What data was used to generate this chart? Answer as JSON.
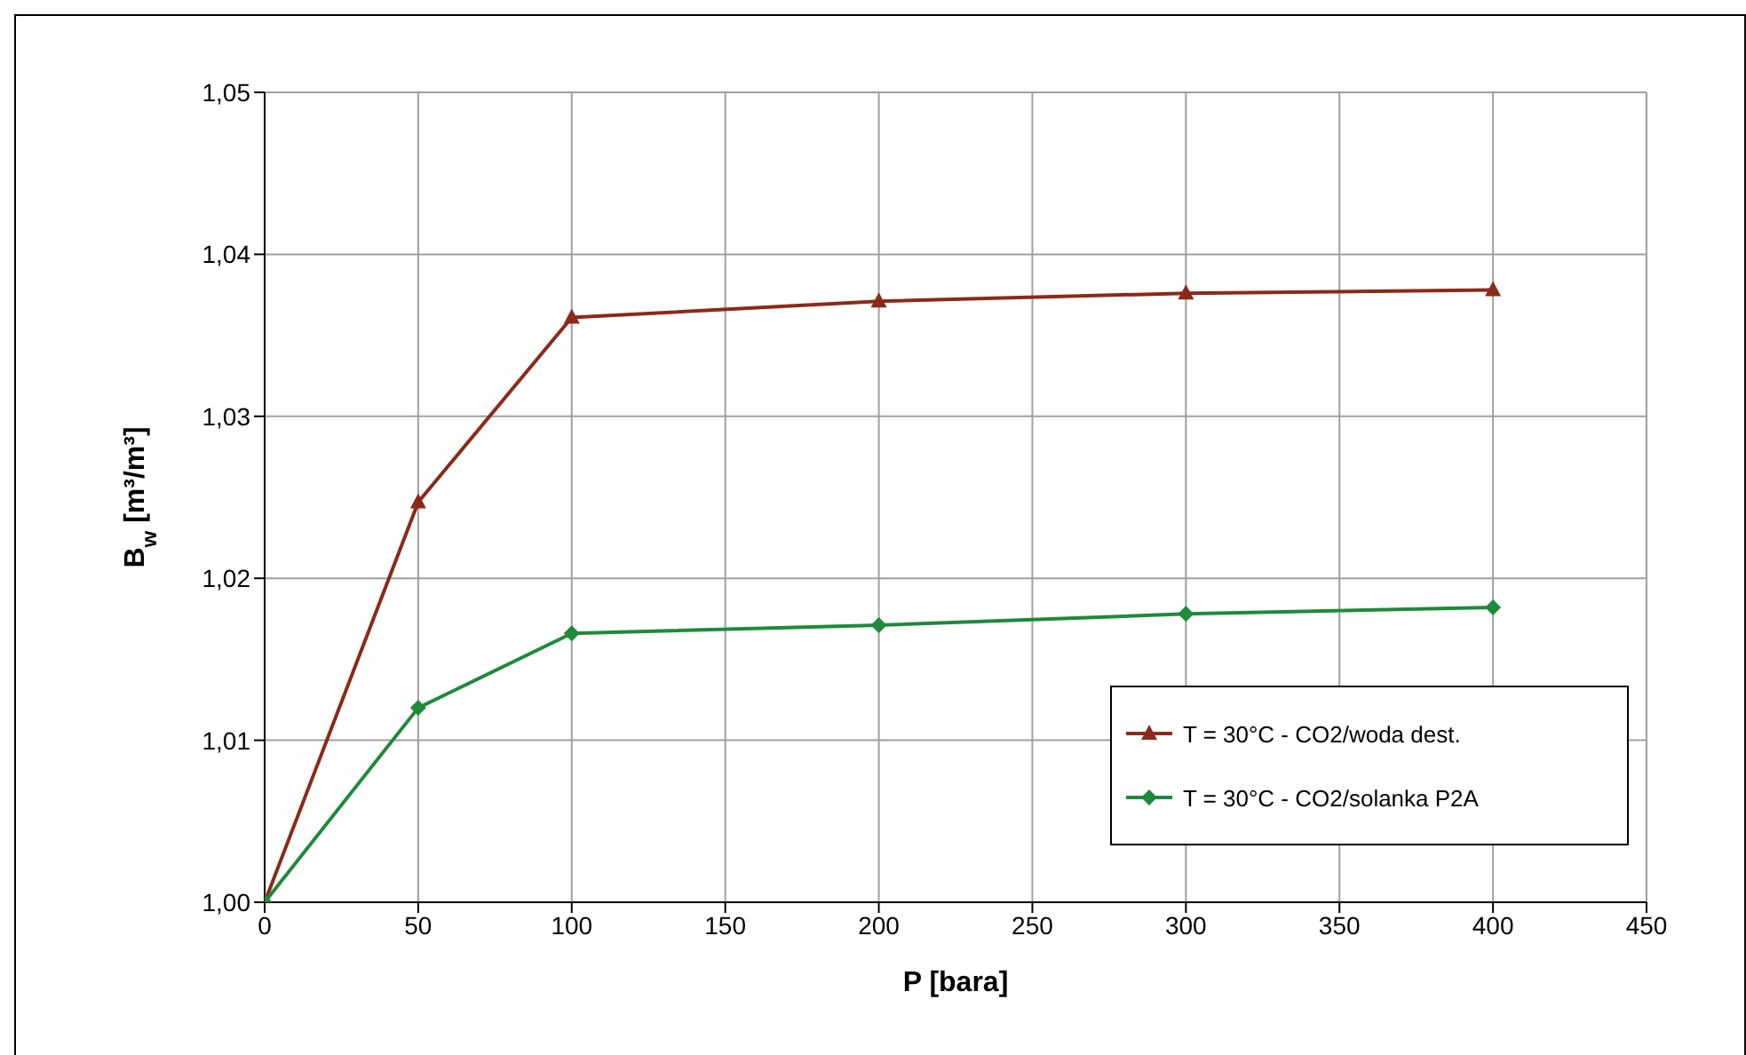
{
  "chart_data": {
    "type": "line",
    "xlabel": "P [bara]",
    "ylabel": "B$_{w}$ [m³/m³]",
    "x": [
      0,
      50,
      100,
      200,
      300,
      400
    ],
    "series": [
      {
        "name": "T = 30°C - CO2/woda dest.",
        "color": "#8b2a1a",
        "marker": "triangle",
        "values": [
          1.0,
          1.0247,
          1.0361,
          1.0371,
          1.0376,
          1.0378
        ]
      },
      {
        "name": "T = 30°C - CO2/solanka P2A",
        "color": "#1e8a3c",
        "marker": "diamond",
        "values": [
          1.0,
          1.012,
          1.0166,
          1.0171,
          1.0178,
          1.0182
        ]
      }
    ],
    "xlim": [
      0,
      450
    ],
    "xticks": [
      0,
      50,
      100,
      150,
      200,
      250,
      300,
      350,
      400,
      450
    ],
    "ylim": [
      1.0,
      1.05
    ],
    "yticks": [
      {
        "value": 1.0,
        "label": "1,00"
      },
      {
        "value": 1.01,
        "label": "1,01"
      },
      {
        "value": 1.02,
        "label": "1,02"
      },
      {
        "value": 1.03,
        "label": "1,03"
      },
      {
        "value": 1.04,
        "label": "1,04"
      },
      {
        "value": 1.05,
        "label": "1,05"
      }
    ],
    "grid": true,
    "legend": "bottom right"
  }
}
